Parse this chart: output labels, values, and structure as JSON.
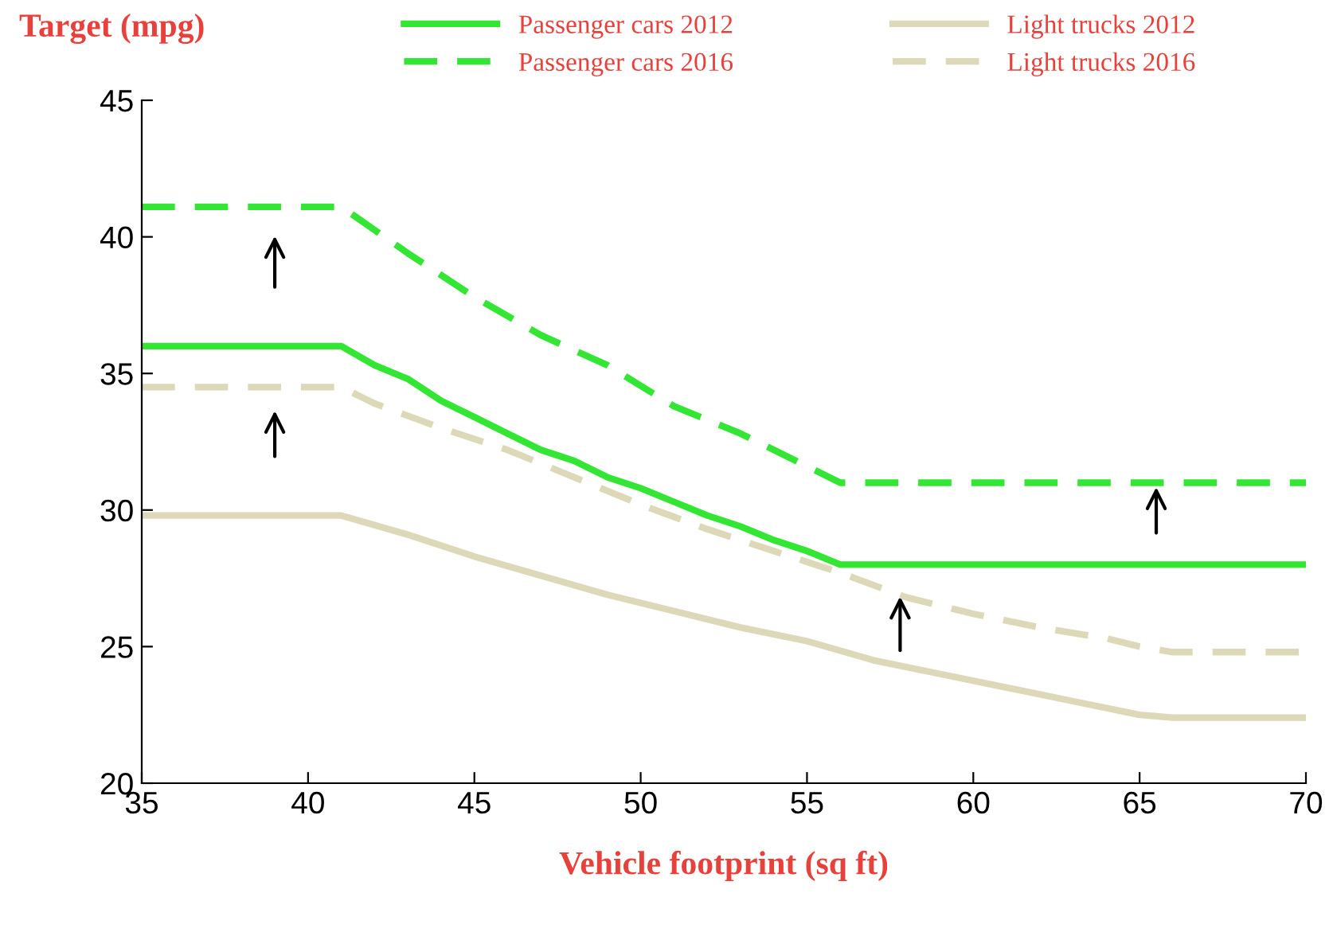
{
  "chart_data": {
    "type": "line",
    "ylabel": "Target (mpg)",
    "xlabel": "Vehicle footprint (sq ft)",
    "xlim": [
      35,
      70
    ],
    "xticks": [
      35,
      40,
      45,
      50,
      55,
      60,
      65,
      70
    ],
    "ylim": [
      20,
      45
    ],
    "yticks": [
      20,
      25,
      30,
      35,
      40,
      45
    ],
    "grid": false,
    "legend": "top",
    "marker": "none",
    "series": [
      {
        "name": "Passenger cars 2012",
        "color": "#33e633",
        "line_style": "solid",
        "x": [
          35,
          41,
          42,
          43,
          44,
          45,
          46,
          47,
          48,
          49,
          50,
          51,
          52,
          53,
          54,
          55,
          56,
          70
        ],
        "values": [
          36,
          36,
          35.3,
          34.8,
          34,
          33.4,
          32.8,
          32.2,
          31.8,
          31.2,
          30.8,
          30.3,
          29.8,
          29.4,
          28.9,
          28.5,
          28,
          28
        ]
      },
      {
        "name": "Passenger cars 2016",
        "color": "#33e633",
        "line_style": "dashed",
        "x": [
          35,
          41,
          43,
          45,
          47,
          49,
          51,
          53,
          55,
          56,
          70
        ],
        "values": [
          41.1,
          41.1,
          39.4,
          37.8,
          36.4,
          35.3,
          33.8,
          32.8,
          31.6,
          31,
          31
        ]
      },
      {
        "name": "Light trucks 2012",
        "color": "#ddd8b8",
        "line_style": "solid",
        "x": [
          35,
          41,
          43,
          45,
          47,
          49,
          51,
          53,
          55,
          57,
          59,
          61,
          63,
          65,
          66,
          70
        ],
        "values": [
          29.8,
          29.8,
          29.1,
          28.3,
          27.6,
          26.9,
          26.3,
          25.7,
          25.2,
          24.5,
          24,
          23.5,
          23,
          22.5,
          22.4,
          22.4
        ]
      },
      {
        "name": "Light trucks 2016",
        "color": "#ddd8b8",
        "line_style": "dashed",
        "x": [
          35,
          41,
          42,
          44,
          46,
          48,
          50,
          52,
          54,
          56,
          58,
          60,
          62,
          64,
          65,
          66,
          70
        ],
        "values": [
          34.5,
          34.5,
          33.9,
          33,
          32.2,
          31.2,
          30.2,
          29.3,
          28.5,
          27.7,
          26.8,
          26.2,
          25.7,
          25.3,
          25,
          24.8,
          24.8
        ]
      }
    ]
  }
}
